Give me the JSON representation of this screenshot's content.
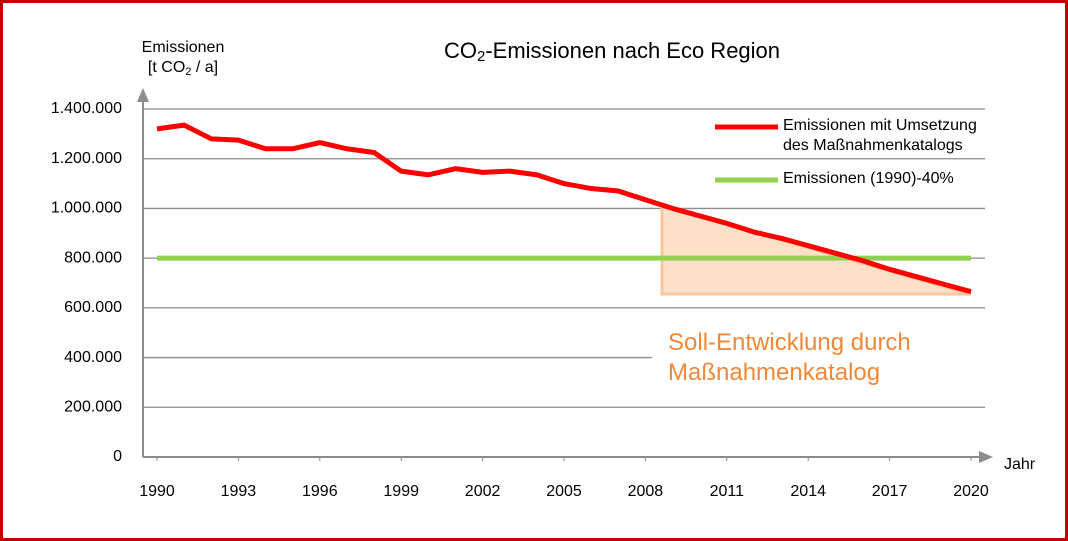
{
  "chart_data": {
    "type": "line",
    "title_parts": [
      "CO",
      "2",
      "-Emissionen nach Eco Region"
    ],
    "y_label": "Emissionen",
    "y_unit_parts": [
      "[t CO",
      "2",
      " / a]"
    ],
    "x_label": "Jahr",
    "annotation": "Soll-Entwicklung durch Maßnahmenkatalog",
    "x": [
      1990,
      1991,
      1992,
      1993,
      1994,
      1995,
      1996,
      1997,
      1998,
      1999,
      2000,
      2001,
      2002,
      2003,
      2004,
      2005,
      2006,
      2007,
      2008,
      2009,
      2010,
      2011,
      2012,
      2013,
      2014,
      2015,
      2016,
      2017,
      2018,
      2019,
      2020
    ],
    "series": [
      {
        "name": "Emissionen mit Umsetzung des Maßnahmenkatalogs",
        "color": "#ff0000",
        "values": [
          1320000,
          1335000,
          1280000,
          1275000,
          1240000,
          1240000,
          1265000,
          1240000,
          1225000,
          1150000,
          1135000,
          1160000,
          1145000,
          1150000,
          1135000,
          1100000,
          1080000,
          1070000,
          1035000,
          1000000,
          970000,
          940000,
          905000,
          880000,
          850000,
          820000,
          790000,
          755000,
          725000,
          695000,
          665000
        ]
      },
      {
        "name": "Emissionen (1990)-40%",
        "color": "#92d050",
        "values": [
          800000,
          800000,
          800000,
          800000,
          800000,
          800000,
          800000,
          800000,
          800000,
          800000,
          800000,
          800000,
          800000,
          800000,
          800000,
          800000,
          800000,
          800000,
          800000,
          800000,
          800000,
          800000,
          800000,
          800000,
          800000,
          800000,
          800000,
          800000,
          800000,
          800000,
          800000
        ]
      }
    ],
    "xlim": [
      1990,
      2020
    ],
    "xticks": [
      1990,
      1993,
      1996,
      1999,
      2002,
      2005,
      2008,
      2011,
      2014,
      2017,
      2020
    ],
    "ylim": [
      0,
      1400000
    ],
    "yticks": [
      0,
      {
        "value": 200000,
        "label": "200.000"
      },
      {
        "value": 400000,
        "label": "400.000"
      },
      {
        "value": 600000,
        "label": "600.000"
      },
      {
        "value": 800000,
        "label": "800.000"
      },
      {
        "value": 1000000,
        "label": "1.000.000"
      },
      {
        "value": 1200000,
        "label": "1.200.000"
      },
      {
        "value": 1400000,
        "label": "1.400.000"
      }
    ],
    "grid": true
  }
}
